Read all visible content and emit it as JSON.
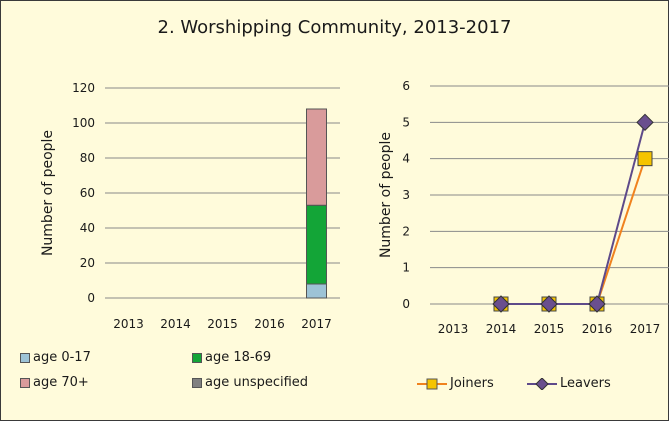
{
  "title": "2. Worshipping Community, 2013-2017",
  "chart_data": [
    {
      "type": "bar",
      "stacked": true,
      "categories": [
        "2013",
        "2014",
        "2015",
        "2016",
        "2017"
      ],
      "ylabel": "Number of people",
      "ylim": [
        0,
        120
      ],
      "yticks": [
        0,
        20,
        40,
        60,
        80,
        100,
        120
      ],
      "grid": true,
      "series": [
        {
          "name": "age 0-17",
          "color": "#9DC3D6",
          "values": [
            0,
            0,
            0,
            0,
            8
          ]
        },
        {
          "name": "age 18-69",
          "color": "#13A537",
          "values": [
            0,
            0,
            0,
            0,
            45
          ]
        },
        {
          "name": "age 70+",
          "color": "#D99B9B",
          "values": [
            0,
            0,
            0,
            0,
            55
          ]
        },
        {
          "name": "age unspecified",
          "color": "#808080",
          "values": [
            0,
            0,
            0,
            0,
            0
          ]
        }
      ]
    },
    {
      "type": "line",
      "categories": [
        "2013",
        "2014",
        "2015",
        "2016",
        "2017"
      ],
      "ylabel": "Number of people",
      "ylim": [
        0,
        6
      ],
      "yticks": [
        0,
        1,
        2,
        3,
        4,
        5,
        6
      ],
      "grid": true,
      "series": [
        {
          "name": "Joiners",
          "color": "#F0821E",
          "marker_color": "#F5C400",
          "marker": "square",
          "values": [
            null,
            0,
            0,
            0,
            4
          ]
        },
        {
          "name": "Leavers",
          "color": "#5E4A8A",
          "marker_color": "#6A4F8E",
          "marker": "diamond",
          "values": [
            null,
            0,
            0,
            0,
            5
          ]
        }
      ]
    }
  ]
}
